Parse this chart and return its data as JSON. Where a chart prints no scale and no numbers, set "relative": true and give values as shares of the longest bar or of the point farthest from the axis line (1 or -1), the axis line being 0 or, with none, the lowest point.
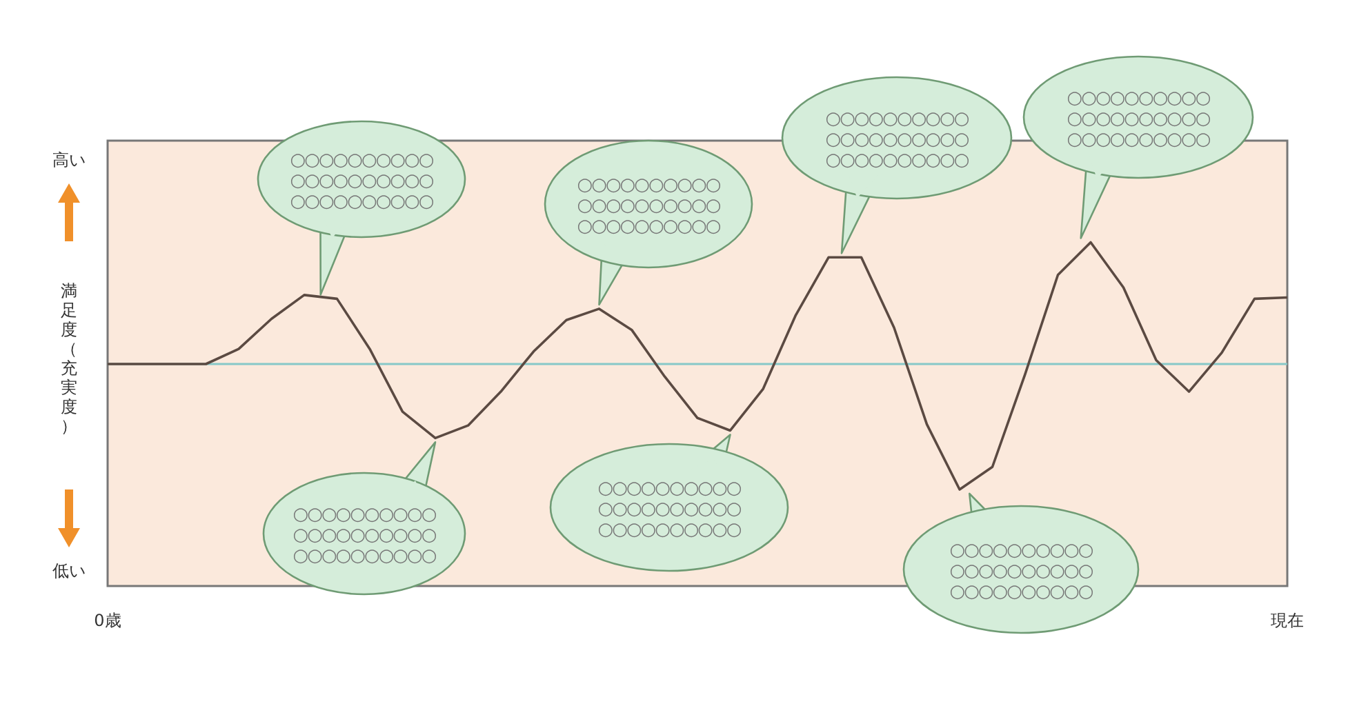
{
  "chart_data": {
    "type": "line",
    "relative": true,
    "ylabel": "満足度（充実度）",
    "categories": [
      "0歳",
      null,
      null,
      null,
      null,
      null,
      null,
      null,
      null,
      null,
      null,
      null,
      null,
      null,
      null,
      null,
      null,
      null,
      null,
      null,
      null,
      null,
      null,
      null,
      null,
      null,
      null,
      null,
      null,
      null,
      null,
      null,
      null,
      null,
      null,
      null,
      "現在"
    ],
    "series": [
      {
        "color": "#5b4a42",
        "values": [
          0,
          0,
          0,
          0,
          0.12,
          0.36,
          0.55,
          0.52,
          0.12,
          -0.38,
          -0.59,
          -0.49,
          -0.22,
          0.1,
          0.35,
          0.44,
          0.27,
          -0.1,
          -0.43,
          -0.53,
          -0.2,
          0.39,
          0.85,
          0.85,
          0.29,
          -0.48,
          -1,
          -0.82,
          -0.08,
          0.71,
          0.97,
          0.61,
          0.03,
          -0.22,
          0.09,
          0.52,
          0.53
        ]
      }
    ],
    "ref_lines": [
      {
        "axis": "y",
        "value": 0,
        "color": "#86c8c8"
      }
    ],
    "annotations": [
      "高い",
      "低い",
      "○○○○○○○○○○\n○○○○○○○○○○\n○○○○○○○○○○",
      "○○○○○○○○○○\n○○○○○○○○○○\n○○○○○○○○○○",
      "○○○○○○○○○○\n○○○○○○○○○○\n○○○○○○○○○○",
      "○○○○○○○○○○\n○○○○○○○○○○\n○○○○○○○○○○",
      "○○○○○○○○○○\n○○○○○○○○○○\n○○○○○○○○○○",
      "○○○○○○○○○○\n○○○○○○○○○○\n○○○○○○○○○○",
      "○○○○○○○○○○\n○○○○○○○○○○\n○○○○○○○○○○"
    ],
    "grid": false
  }
}
